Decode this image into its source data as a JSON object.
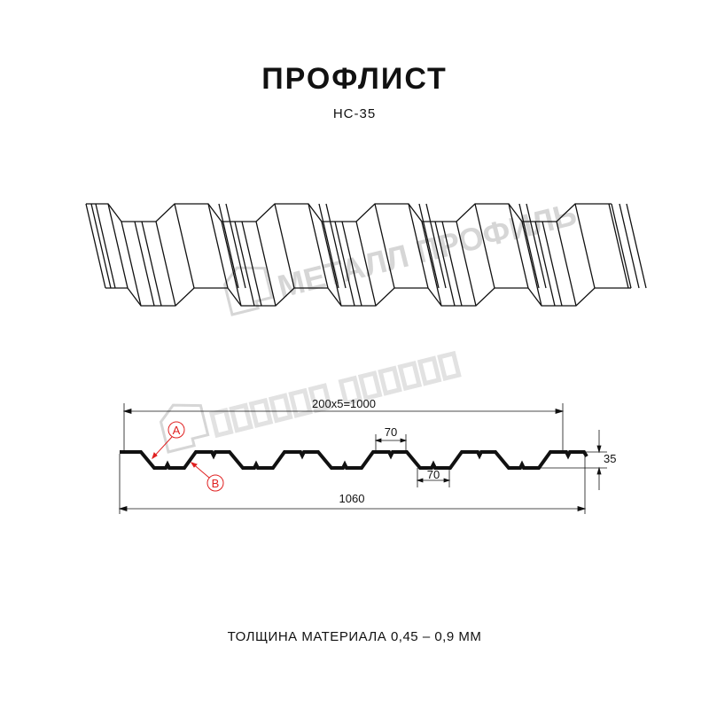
{
  "title": "ПРОФЛИСТ",
  "subtitle": "НС-35",
  "watermark": "МЕТАЛЛ ПРОФИЛЬ",
  "dimensions": {
    "pitch_total": "200x5=1000",
    "top_width": "70",
    "bottom_width": "70",
    "height": "35",
    "full_width": "1060"
  },
  "callouts": {
    "a": "A",
    "b": "B"
  },
  "footer": "ТОЛЩИНА МАТЕРИАЛА 0,45 – 0,9 ММ",
  "colors": {
    "profile": "#111111",
    "callout": "#e02020",
    "watermark": "#d6d6d6"
  }
}
